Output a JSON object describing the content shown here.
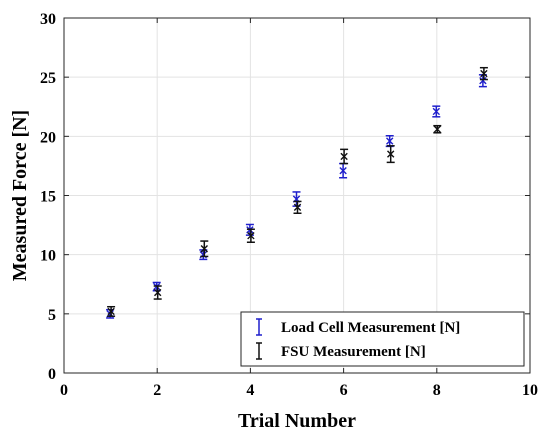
{
  "chart_data": {
    "type": "scatter",
    "xlabel": "Trial Number",
    "ylabel": "Measured Force [N]",
    "xlim": [
      0,
      10
    ],
    "ylim": [
      0,
      30
    ],
    "xticks": [
      "0",
      "2",
      "4",
      "6",
      "8",
      "10"
    ],
    "yticks": [
      "0",
      "5",
      "10",
      "15",
      "20",
      "25",
      "30"
    ],
    "grid": true,
    "legend_position": "bottom-right",
    "series": [
      {
        "name": "Load Cell Measurement [N]",
        "color": "#1f1fcc",
        "marker": "x",
        "points": [
          {
            "x": 1,
            "y": 5.0,
            "err": 0.35
          },
          {
            "x": 2,
            "y": 7.3,
            "err": 0.35
          },
          {
            "x": 3,
            "y": 10.0,
            "err": 0.4
          },
          {
            "x": 4,
            "y": 12.1,
            "err": 0.45
          },
          {
            "x": 5,
            "y": 14.7,
            "err": 0.6
          },
          {
            "x": 6,
            "y": 17.1,
            "err": 0.6
          },
          {
            "x": 7,
            "y": 19.6,
            "err": 0.45
          },
          {
            "x": 8,
            "y": 22.1,
            "err": 0.45
          },
          {
            "x": 9,
            "y": 24.7,
            "err": 0.5
          }
        ]
      },
      {
        "name": "FSU Measurement [N]",
        "color": "#111111",
        "marker": "x",
        "points": [
          {
            "x": 1,
            "y": 5.2,
            "err": 0.4
          },
          {
            "x": 2,
            "y": 6.8,
            "err": 0.55
          },
          {
            "x": 3,
            "y": 10.5,
            "err": 0.65
          },
          {
            "x": 4,
            "y": 11.6,
            "err": 0.55
          },
          {
            "x": 5,
            "y": 14.0,
            "err": 0.5
          },
          {
            "x": 6,
            "y": 18.3,
            "err": 0.6
          },
          {
            "x": 7,
            "y": 18.5,
            "err": 0.7
          },
          {
            "x": 8,
            "y": 20.6,
            "err": 0.3
          },
          {
            "x": 9,
            "y": 25.3,
            "err": 0.5
          }
        ]
      }
    ]
  }
}
